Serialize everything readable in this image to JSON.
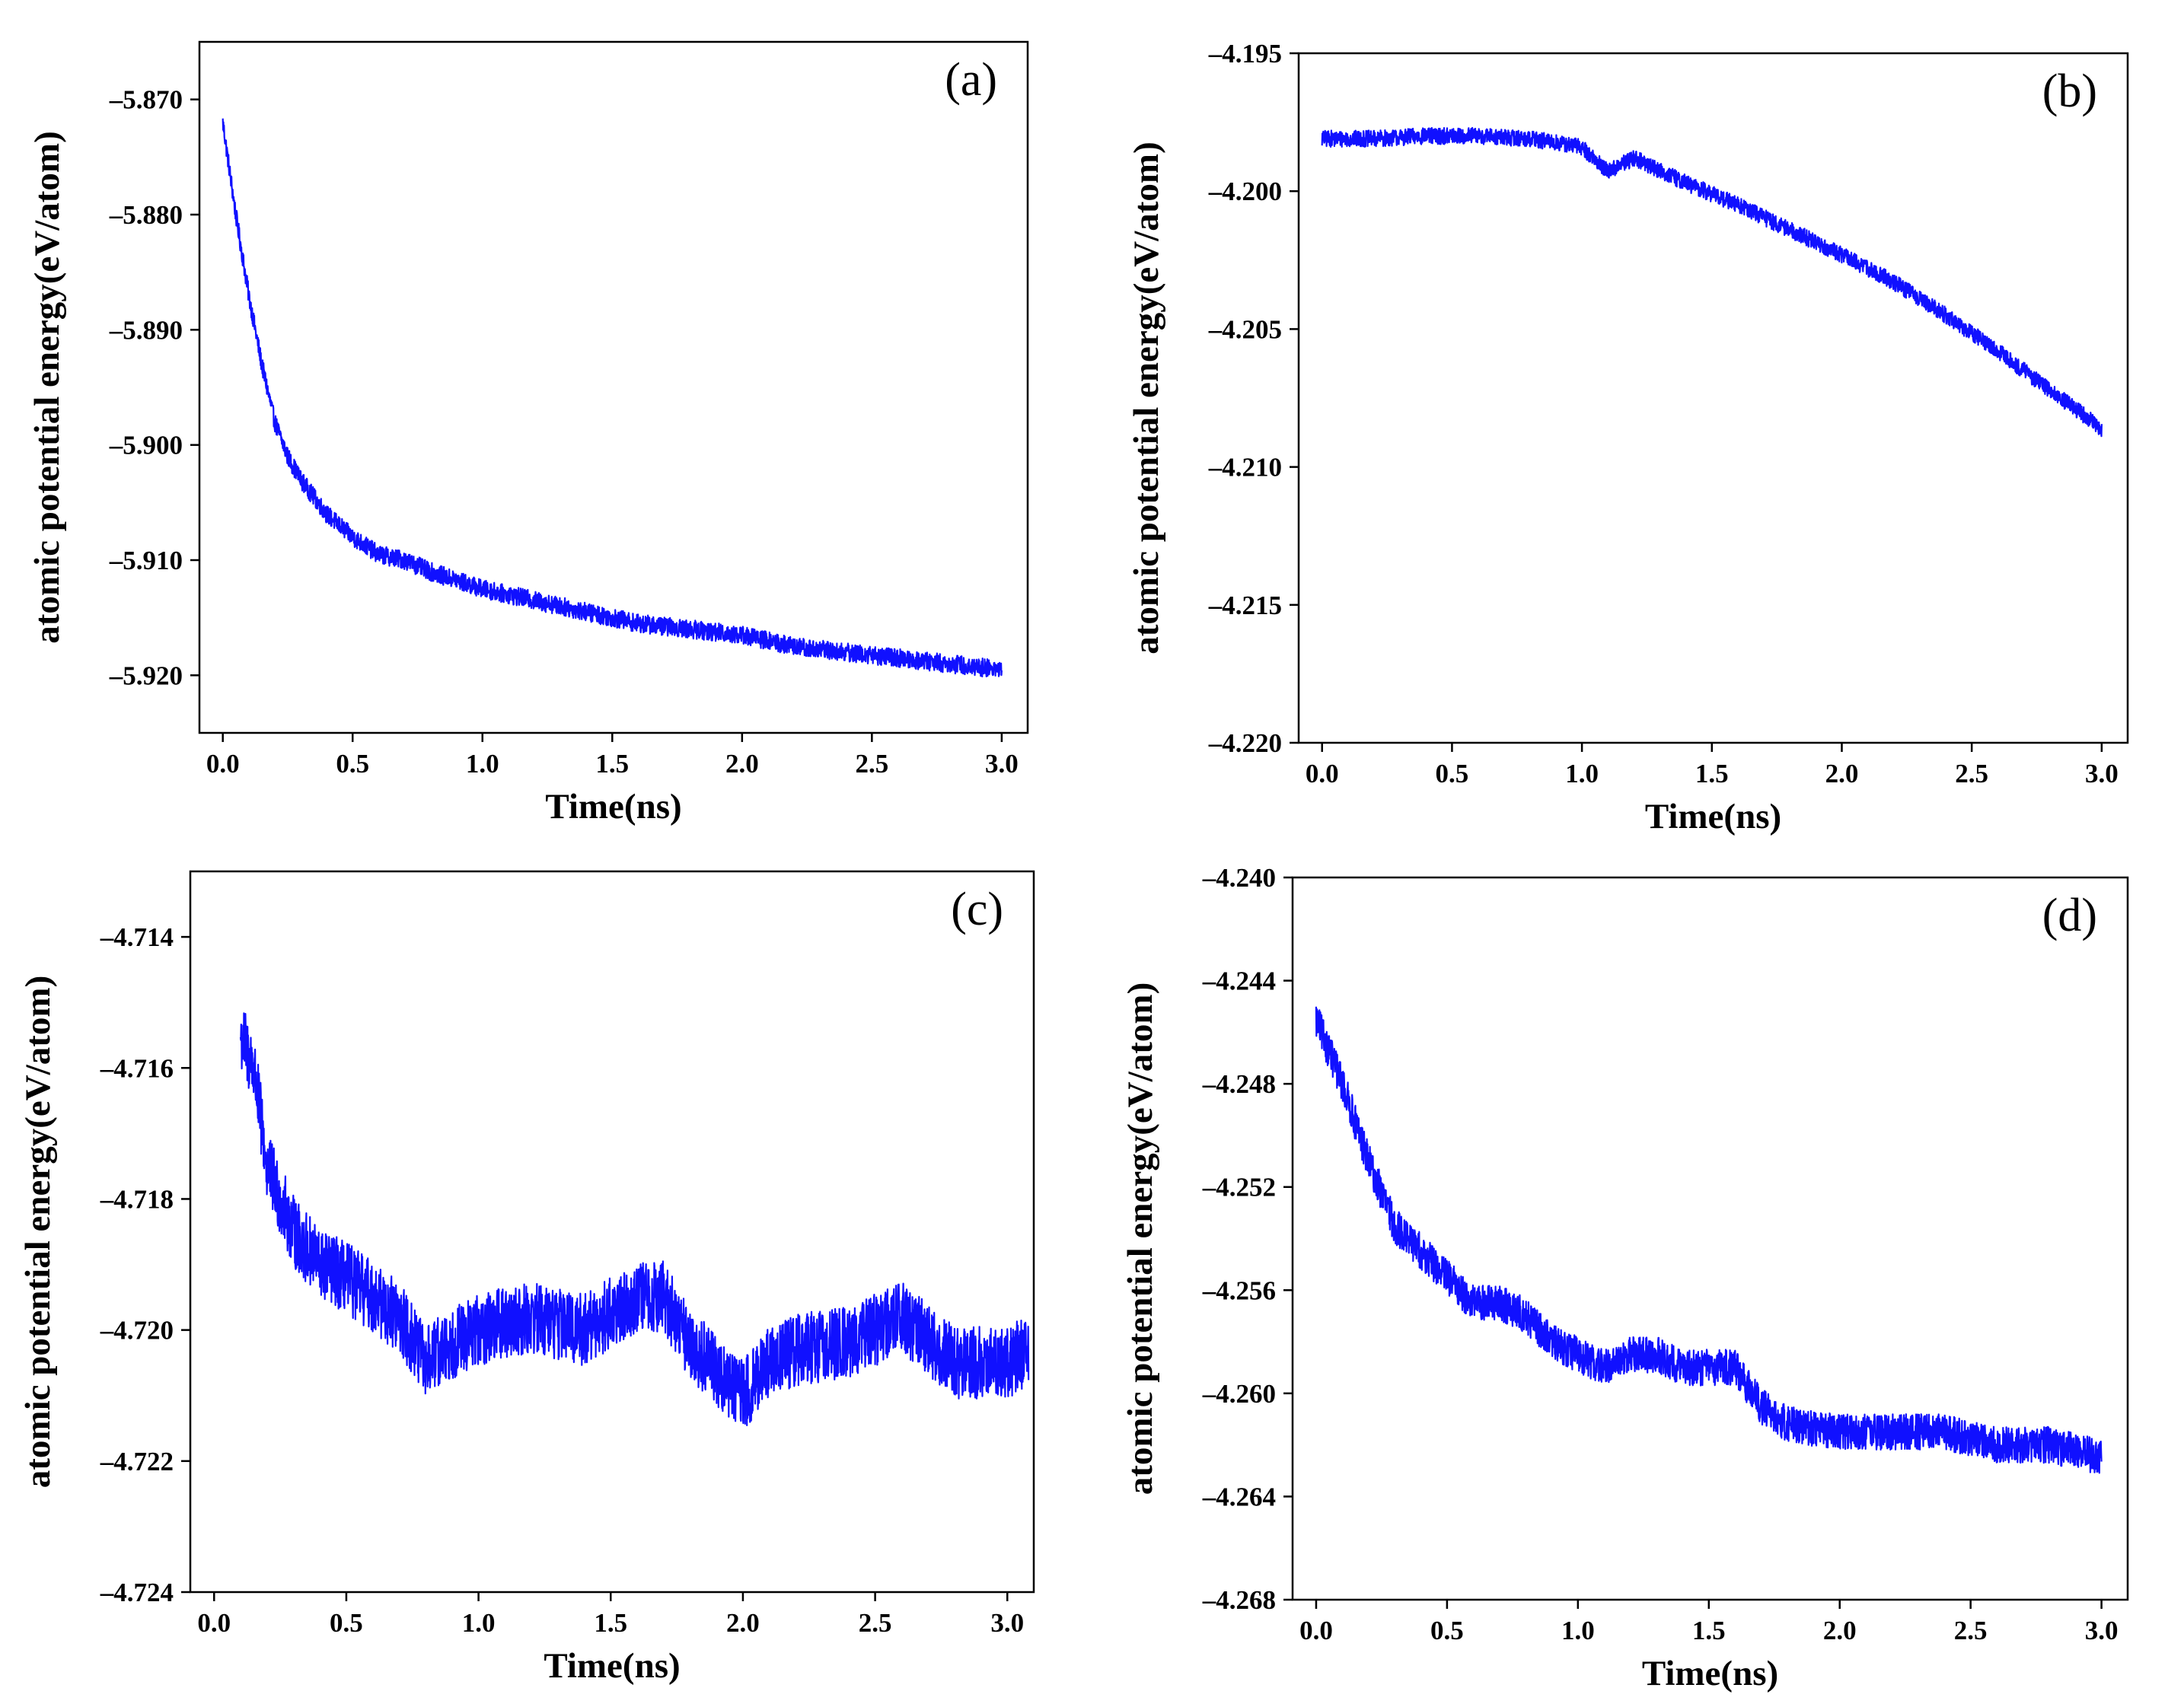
{
  "figure": {
    "series_color": "#1010ff"
  },
  "chart_data": [
    {
      "type": "line",
      "panel": "(a)",
      "xlabel": "Time(ns)",
      "ylabel": "atomic potential energy(eV/atom)",
      "xlim": [
        -0.09,
        3.1
      ],
      "ylim": [
        -5.925,
        -5.865
      ],
      "xticks": [
        0.0,
        0.5,
        1.0,
        1.5,
        2.0,
        2.5,
        3.0
      ],
      "xtick_labels": [
        "0.0",
        "0.5",
        "1.0",
        "1.5",
        "2.0",
        "2.5",
        "3.0"
      ],
      "yticks": [
        -5.87,
        -5.88,
        -5.89,
        -5.9,
        -5.91,
        -5.92
      ],
      "ytick_labels": [
        "–5.870",
        "–5.880",
        "–5.890",
        "–5.900",
        "–5.910",
        "–5.920"
      ],
      "noise": 0.0008,
      "series": [
        {
          "name": "atomic potential energy",
          "x": [
            0.0,
            0.05,
            0.1,
            0.15,
            0.2,
            0.25,
            0.3,
            0.4,
            0.5,
            0.6,
            0.7,
            0.8,
            1.0,
            1.2,
            1.4,
            1.6,
            1.8,
            2.0,
            2.2,
            2.4,
            2.6,
            2.8,
            3.0
          ],
          "y": [
            -5.872,
            -5.88,
            -5.887,
            -5.893,
            -5.898,
            -5.901,
            -5.903,
            -5.906,
            -5.908,
            -5.9095,
            -5.91,
            -5.911,
            -5.9125,
            -5.9135,
            -5.9145,
            -5.9155,
            -5.916,
            -5.9165,
            -5.9175,
            -5.918,
            -5.9185,
            -5.919,
            -5.9195
          ]
        }
      ]
    },
    {
      "type": "line",
      "panel": "(b)",
      "xlabel": "Time(ns)",
      "ylabel": "atomic potential energy(eV/atom)",
      "xlim": [
        -0.09,
        3.1
      ],
      "ylim": [
        -4.22,
        -4.195
      ],
      "xticks": [
        0.0,
        0.5,
        1.0,
        1.5,
        2.0,
        2.5,
        3.0
      ],
      "xtick_labels": [
        "0.0",
        "0.5",
        "1.0",
        "1.5",
        "2.0",
        "2.5",
        "3.0"
      ],
      "yticks": [
        -4.195,
        -4.2,
        -4.205,
        -4.21,
        -4.215,
        -4.22
      ],
      "ytick_labels": [
        "–4.195",
        "–4.200",
        "–4.205",
        "–4.210",
        "–4.215",
        "–4.220"
      ],
      "noise": 0.0003,
      "series": [
        {
          "name": "atomic potential energy",
          "x": [
            0.0,
            0.2,
            0.4,
            0.6,
            0.8,
            1.0,
            1.1,
            1.2,
            1.4,
            1.6,
            1.8,
            2.0,
            2.2,
            2.4,
            2.6,
            2.8,
            3.0
          ],
          "y": [
            -4.1981,
            -4.1981,
            -4.198,
            -4.198,
            -4.1981,
            -4.1984,
            -4.1993,
            -4.1988,
            -4.1997,
            -4.2005,
            -4.2014,
            -4.2023,
            -4.2033,
            -4.2045,
            -4.2058,
            -4.2072,
            -4.2086
          ]
        }
      ]
    },
    {
      "type": "line",
      "panel": "(c)",
      "xlabel": "Time(ns)",
      "ylabel": "atomic potential energy(eV/atom)",
      "xlim": [
        -0.09,
        3.1
      ],
      "ylim": [
        -4.724,
        -4.713
      ],
      "xticks": [
        0.0,
        0.5,
        1.0,
        1.5,
        2.0,
        2.5,
        3.0
      ],
      "xtick_labels": [
        "0.0",
        "0.5",
        "1.0",
        "1.5",
        "2.0",
        "2.5",
        "3.0"
      ],
      "yticks": [
        -4.714,
        -4.716,
        -4.718,
        -4.72,
        -4.722,
        -4.724
      ],
      "ytick_labels": [
        "–4.714",
        "–4.716",
        "–4.718",
        "–4.720",
        "–4.722",
        "–4.724"
      ],
      "noise": 0.00055,
      "series": [
        {
          "name": "atomic potential energy",
          "x": [
            0.1,
            0.15,
            0.2,
            0.3,
            0.4,
            0.5,
            0.6,
            0.7,
            0.8,
            0.9,
            1.0,
            1.2,
            1.4,
            1.6,
            1.7,
            1.8,
            2.0,
            2.1,
            2.2,
            2.4,
            2.6,
            2.8,
            3.0,
            3.08
          ],
          "y": [
            -4.7155,
            -4.716,
            -4.7175,
            -4.7185,
            -4.719,
            -4.7192,
            -4.7195,
            -4.7198,
            -4.7205,
            -4.7202,
            -4.72,
            -4.7198,
            -4.72,
            -4.7195,
            -4.7195,
            -4.7202,
            -4.721,
            -4.7205,
            -4.7203,
            -4.7202,
            -4.7198,
            -4.7205,
            -4.7205,
            -4.7203
          ]
        }
      ]
    },
    {
      "type": "line",
      "panel": "(d)",
      "xlabel": "Time(ns)",
      "ylabel": "atomic potential energy(eV/atom)",
      "xlim": [
        -0.09,
        3.1
      ],
      "ylim": [
        -4.268,
        -4.24
      ],
      "xticks": [
        0.0,
        0.5,
        1.0,
        1.5,
        2.0,
        2.5,
        3.0
      ],
      "xtick_labels": [
        "0.0",
        "0.5",
        "1.0",
        "1.5",
        "2.0",
        "2.5",
        "3.0"
      ],
      "yticks": [
        -4.24,
        -4.244,
        -4.248,
        -4.252,
        -4.256,
        -4.26,
        -4.264,
        -4.268
      ],
      "ytick_labels": [
        "–4.240",
        "–4.244",
        "–4.248",
        "–4.252",
        "–4.256",
        "–4.260",
        "–4.264",
        "–4.268"
      ],
      "noise": 0.0007,
      "series": [
        {
          "name": "atomic potential energy",
          "x": [
            0.0,
            0.1,
            0.2,
            0.3,
            0.4,
            0.5,
            0.6,
            0.7,
            0.8,
            0.9,
            1.0,
            1.1,
            1.2,
            1.3,
            1.4,
            1.5,
            1.6,
            1.7,
            1.8,
            2.0,
            2.2,
            2.4,
            2.6,
            2.8,
            3.0
          ],
          "y": [
            -4.2455,
            -4.248,
            -4.251,
            -4.2535,
            -4.2545,
            -4.2555,
            -4.2565,
            -4.2565,
            -4.257,
            -4.258,
            -4.2585,
            -4.259,
            -4.2585,
            -4.2585,
            -4.259,
            -4.259,
            -4.259,
            -4.2605,
            -4.2612,
            -4.2615,
            -4.2615,
            -4.2615,
            -4.262,
            -4.262,
            -4.2625
          ]
        }
      ]
    }
  ]
}
